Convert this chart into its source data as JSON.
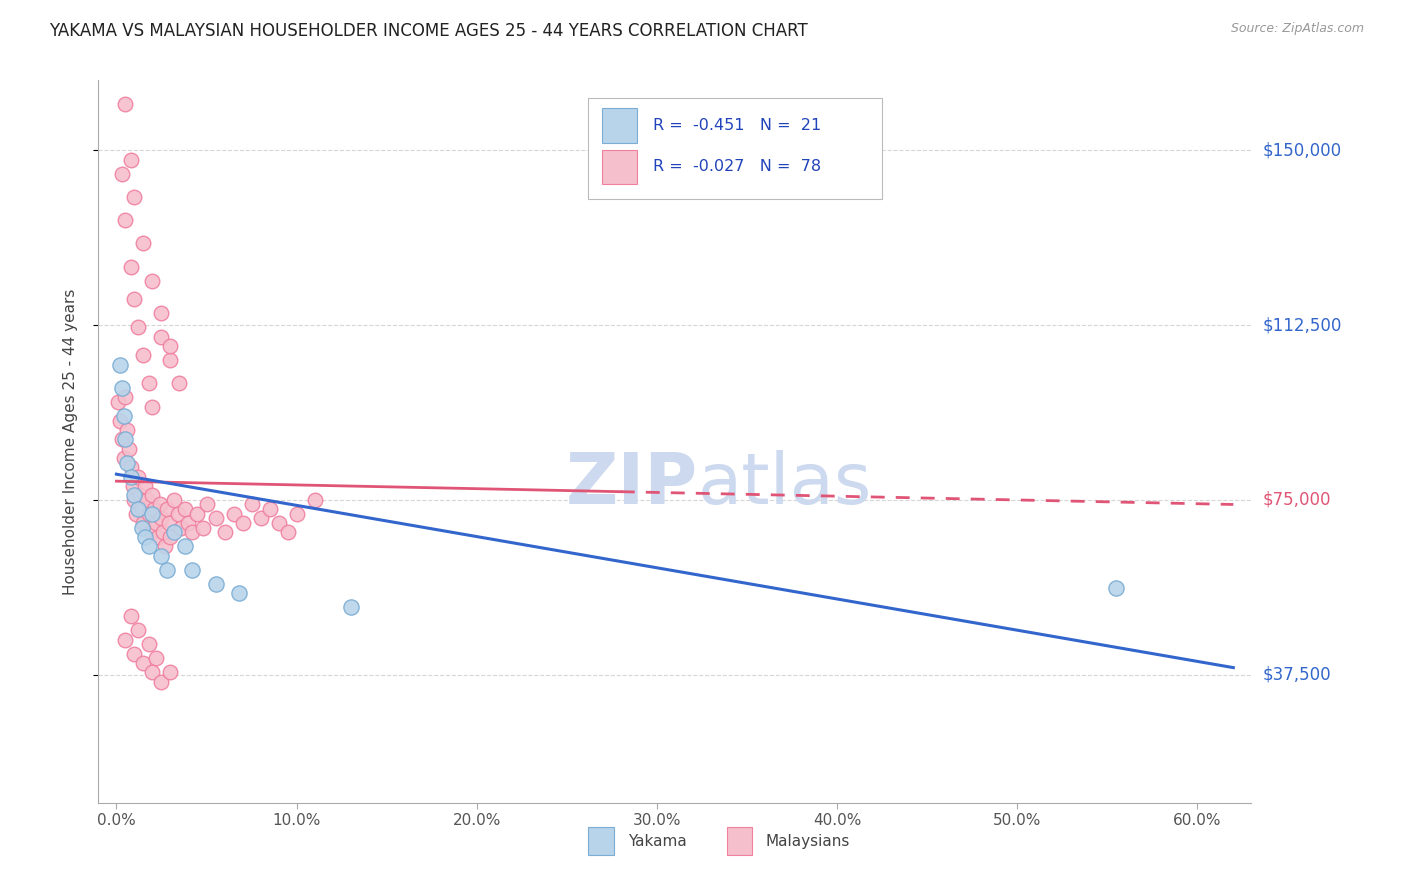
{
  "title": "YAKAMA VS MALAYSIAN HOUSEHOLDER INCOME AGES 25 - 44 YEARS CORRELATION CHART",
  "source": "Source: ZipAtlas.com",
  "ylabel": "Householder Income Ages 25 - 44 years",
  "xlabel_ticks": [
    "0.0%",
    "10.0%",
    "20.0%",
    "30.0%",
    "40.0%",
    "50.0%",
    "60.0%"
  ],
  "xlabel_vals": [
    0.0,
    0.1,
    0.2,
    0.3,
    0.4,
    0.5,
    0.6
  ],
  "ytick_labels": [
    "$37,500",
    "$75,000",
    "$112,500",
    "$150,000"
  ],
  "ytick_vals": [
    37500,
    75000,
    112500,
    150000
  ],
  "ylim": [
    10000,
    165000
  ],
  "xlim": [
    -0.01,
    0.63
  ],
  "legend_r_yakama": "R = -0.451",
  "legend_n_yakama": "N = 21",
  "legend_r_malaysians": "R = -0.027",
  "legend_n_malaysians": "N = 78",
  "yakama_color": "#b8d4ea",
  "yakama_edge_color": "#7badd4",
  "malaysians_color": "#f5bfcc",
  "malaysians_edge_color": "#f080a0",
  "trend_yakama_color": "#3366cc",
  "trend_malaysians_color": "#e05575",
  "watermark_color": "#ccd9ee",
  "grid_color": "#cccccc",
  "title_color": "#222222",
  "axis_label_color": "#444444",
  "right_tick_blue": "#3366cc",
  "right_tick_pink": "#e05575",
  "yakama_x": [
    0.002,
    0.003,
    0.004,
    0.005,
    0.006,
    0.008,
    0.01,
    0.012,
    0.014,
    0.016,
    0.018,
    0.02,
    0.025,
    0.028,
    0.032,
    0.038,
    0.042,
    0.055,
    0.068,
    0.13,
    0.555
  ],
  "yakama_y": [
    104000,
    99000,
    93000,
    88000,
    83000,
    80000,
    76000,
    73000,
    69000,
    67000,
    65000,
    72000,
    63000,
    60000,
    68000,
    65000,
    60000,
    57000,
    55000,
    52000,
    56000
  ],
  "malaysians_x": [
    0.001,
    0.002,
    0.003,
    0.004,
    0.005,
    0.006,
    0.007,
    0.008,
    0.009,
    0.01,
    0.011,
    0.012,
    0.013,
    0.014,
    0.015,
    0.016,
    0.017,
    0.018,
    0.019,
    0.02,
    0.021,
    0.022,
    0.023,
    0.024,
    0.025,
    0.026,
    0.027,
    0.028,
    0.029,
    0.03,
    0.032,
    0.034,
    0.036,
    0.038,
    0.04,
    0.042,
    0.045,
    0.048,
    0.05,
    0.055,
    0.06,
    0.065,
    0.07,
    0.075,
    0.08,
    0.085,
    0.09,
    0.095,
    0.1,
    0.11,
    0.003,
    0.005,
    0.008,
    0.01,
    0.012,
    0.015,
    0.018,
    0.02,
    0.025,
    0.03,
    0.005,
    0.008,
    0.01,
    0.015,
    0.02,
    0.025,
    0.03,
    0.035,
    0.005,
    0.01,
    0.015,
    0.02,
    0.025,
    0.008,
    0.012,
    0.018,
    0.022,
    0.03
  ],
  "malaysians_y": [
    96000,
    92000,
    88000,
    84000,
    97000,
    90000,
    86000,
    82000,
    78000,
    75000,
    72000,
    80000,
    76000,
    73000,
    70000,
    78000,
    75000,
    72000,
    68000,
    76000,
    73000,
    70000,
    67000,
    74000,
    71000,
    68000,
    65000,
    73000,
    70000,
    67000,
    75000,
    72000,
    69000,
    73000,
    70000,
    68000,
    72000,
    69000,
    74000,
    71000,
    68000,
    72000,
    70000,
    74000,
    71000,
    73000,
    70000,
    68000,
    72000,
    75000,
    145000,
    135000,
    125000,
    118000,
    112000,
    106000,
    100000,
    95000,
    110000,
    105000,
    160000,
    148000,
    140000,
    130000,
    122000,
    115000,
    108000,
    100000,
    45000,
    42000,
    40000,
    38000,
    36000,
    50000,
    47000,
    44000,
    41000,
    38000
  ]
}
